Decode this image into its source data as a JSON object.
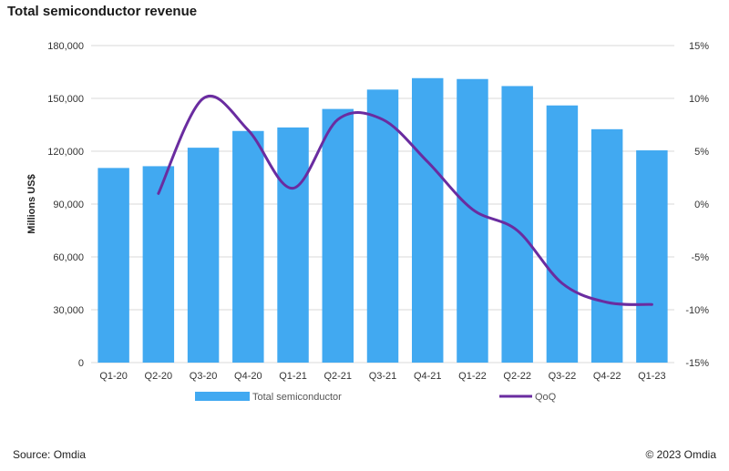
{
  "chart_data": {
    "type": "bar",
    "title": "Total semiconductor revenue",
    "categories": [
      "Q1-20",
      "Q2-20",
      "Q3-20",
      "Q4-20",
      "Q1-21",
      "Q2-21",
      "Q3-21",
      "Q4-21",
      "Q1-22",
      "Q2-22",
      "Q3-22",
      "Q4-22",
      "Q1-23"
    ],
    "series": [
      {
        "name": "Total semiconductor",
        "type": "bar",
        "axis": "left",
        "color": "#41a9f1",
        "values": [
          110500,
          111500,
          122000,
          131500,
          133500,
          144000,
          155000,
          161500,
          161000,
          157000,
          146000,
          132500,
          120500
        ]
      },
      {
        "name": "QoQ",
        "type": "line",
        "axis": "right",
        "color": "#6a2ca0",
        "unit": "%",
        "values": [
          null,
          1.0,
          10.0,
          7.0,
          1.5,
          8.0,
          8.0,
          4.0,
          -0.5,
          -2.5,
          -7.5,
          -9.3,
          -9.5
        ]
      }
    ],
    "ylabel": "Millions US$",
    "ylim": [
      0,
      180000
    ],
    "yticks": [
      "0",
      "30,000",
      "60,000",
      "90,000",
      "120,000",
      "150,000",
      "180,000"
    ],
    "y2lim": [
      -15,
      15
    ],
    "y2ticks": [
      "-15%",
      "-10%",
      "-5%",
      "0%",
      "5%",
      "10%",
      "15%"
    ],
    "grid": true,
    "legend_position": "bottom"
  },
  "footer": {
    "source": "Source: Omdia",
    "copyright": "© 2023 Omdia"
  }
}
